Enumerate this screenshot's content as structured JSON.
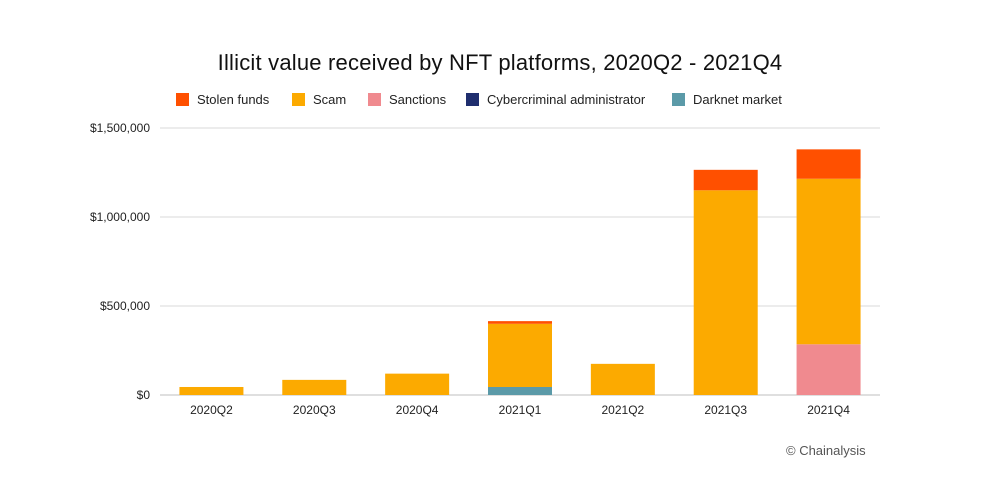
{
  "chart_data": {
    "type": "bar",
    "stacked": true,
    "title": "Illicit value received by NFT platforms, 2020Q2 - 2021Q4",
    "xlabel": "",
    "ylabel": "",
    "ylim": [
      0,
      1500000
    ],
    "yticks": [
      0,
      500000,
      1000000,
      1500000
    ],
    "ytick_labels": [
      "$0",
      "$500,000",
      "$1,000,000",
      "$1,500,000"
    ],
    "grid": true,
    "legend_position": "top",
    "categories": [
      "2020Q2",
      "2020Q3",
      "2020Q4",
      "2021Q1",
      "2021Q2",
      "2021Q3",
      "2021Q4"
    ],
    "series": [
      {
        "name": "Darknet market",
        "color": "#5b9aa8",
        "values": [
          0,
          0,
          0,
          45000,
          0,
          0,
          0
        ]
      },
      {
        "name": "Cybercriminal administrator",
        "color": "#1f2e6e",
        "values": [
          0,
          0,
          0,
          0,
          0,
          0,
          0
        ]
      },
      {
        "name": "Sanctions",
        "color": "#f08a8f",
        "values": [
          0,
          0,
          0,
          0,
          0,
          0,
          285000
        ]
      },
      {
        "name": "Scam",
        "color": "#fcaa00",
        "values": [
          45000,
          85000,
          120000,
          355000,
          175000,
          1150000,
          930000
        ]
      },
      {
        "name": "Stolen funds",
        "color": "#ff5000",
        "values": [
          0,
          0,
          0,
          15000,
          0,
          115000,
          165000
        ]
      }
    ],
    "legend_order": [
      "Stolen funds",
      "Scam",
      "Sanctions",
      "Cybercriminal administrator",
      "Darknet market"
    ]
  },
  "legend": {
    "items": [
      {
        "label": "Stolen funds",
        "color": "#ff5000"
      },
      {
        "label": "Scam",
        "color": "#fcaa00"
      },
      {
        "label": "Sanctions",
        "color": "#f08a8f"
      },
      {
        "label": "Cybercriminal administrator",
        "color": "#1f2e6e"
      },
      {
        "label": "Darknet market",
        "color": "#5b9aa8"
      }
    ]
  },
  "source": "© Chainalysis"
}
